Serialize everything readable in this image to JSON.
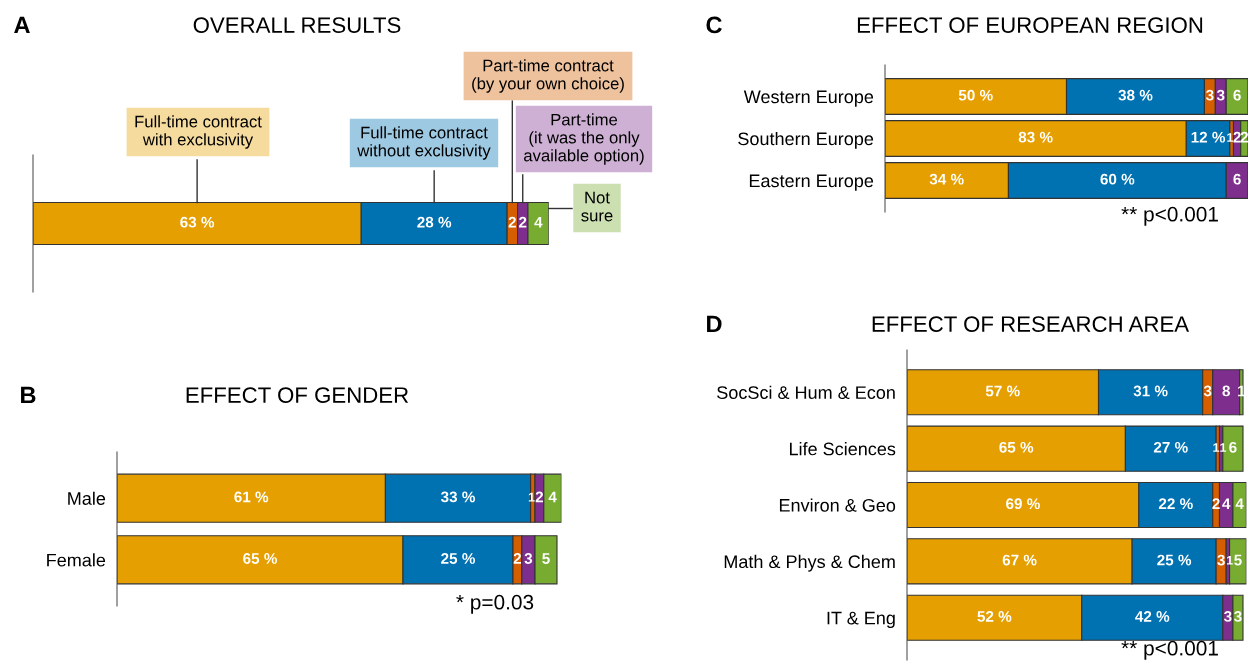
{
  "chart_data": [
    {
      "type": "bar",
      "orientation": "horizontal",
      "stacked": true,
      "title": "OVERALL RESULTS",
      "annotations": [
        "A"
      ],
      "categories": [
        null
      ],
      "series": [
        {
          "name": "Full-time contract\nwith exclusivity",
          "color": "#e69f00",
          "values": [
            63
          ],
          "value_labels": [
            "63 %"
          ]
        },
        {
          "name": "Full-time contract\nwithout exclusivity",
          "color": "#0072b2",
          "values": [
            28
          ],
          "value_labels": [
            "28 %"
          ]
        },
        {
          "name": "Part-time contract\n(by your own choice)",
          "color": "#d55e00",
          "values": [
            2
          ],
          "value_labels": [
            "2"
          ]
        },
        {
          "name": "Part-time\n(it was the only\navailable option)",
          "color": "#7e2f8e",
          "values": [
            2
          ],
          "value_labels": [
            "2"
          ]
        },
        {
          "name": "Not\nsure",
          "color": "#77ac30",
          "values": [
            4
          ],
          "value_labels": [
            "4"
          ]
        }
      ]
    },
    {
      "type": "bar",
      "orientation": "horizontal",
      "stacked": true,
      "title": "EFFECT OF GENDER",
      "annotations": [
        "B",
        "* p=0.03"
      ],
      "categories": [
        "Male",
        "Female"
      ],
      "series": [
        {
          "color": "#e69f00",
          "values": [
            61,
            65
          ],
          "value_labels": [
            "61 %",
            "65 %"
          ]
        },
        {
          "color": "#0072b2",
          "values": [
            33,
            25
          ],
          "value_labels": [
            "33 %",
            "25 %"
          ]
        },
        {
          "color": "#d55e00",
          "values": [
            1,
            2
          ],
          "value_labels": [
            "1",
            "2"
          ]
        },
        {
          "color": "#7e2f8e",
          "values": [
            2,
            3
          ],
          "value_labels": [
            "2",
            "3"
          ]
        },
        {
          "color": "#77ac30",
          "values": [
            4,
            5
          ],
          "value_labels": [
            "4",
            "5"
          ]
        }
      ]
    },
    {
      "type": "bar",
      "orientation": "horizontal",
      "stacked": true,
      "title": "EFFECT OF EUROPEAN REGION",
      "annotations": [
        "C",
        "** p<0.001"
      ],
      "categories": [
        "Western Europe",
        "Southern Europe",
        "Eastern Europe"
      ],
      "series": [
        {
          "color": "#e69f00",
          "values": [
            50,
            83,
            34
          ],
          "value_labels": [
            "50 %",
            "83 %",
            "34 %"
          ]
        },
        {
          "color": "#0072b2",
          "values": [
            38,
            12,
            60
          ],
          "value_labels": [
            "38 %",
            "12 %",
            "60 %"
          ]
        },
        {
          "color": "#d55e00",
          "values": [
            3,
            1,
            null
          ],
          "value_labels": [
            "3",
            "1",
            null
          ]
        },
        {
          "color": "#7e2f8e",
          "values": [
            3,
            2,
            6
          ],
          "value_labels": [
            "3",
            "2",
            "6"
          ]
        },
        {
          "color": "#77ac30",
          "values": [
            6,
            2,
            null
          ],
          "value_labels": [
            "6",
            "2",
            null
          ]
        }
      ]
    },
    {
      "type": "bar",
      "orientation": "horizontal",
      "stacked": true,
      "title": "EFFECT OF RESEARCH AREA",
      "annotations": [
        "D",
        "** p<0.001"
      ],
      "categories": [
        "SocSci & Hum & Econ",
        "Life Sciences",
        "Environ & Geo",
        "Math & Phys & Chem",
        "IT & Eng"
      ],
      "series": [
        {
          "color": "#e69f00",
          "values": [
            57,
            65,
            69,
            67,
            52
          ],
          "value_labels": [
            "57 %",
            "65 %",
            "69 %",
            "67 %",
            "52 %"
          ]
        },
        {
          "color": "#0072b2",
          "values": [
            31,
            27,
            22,
            25,
            42
          ],
          "value_labels": [
            "31 %",
            "27 %",
            "22 %",
            "25 %",
            "42 %"
          ]
        },
        {
          "color": "#d55e00",
          "values": [
            3,
            1,
            2,
            3,
            null
          ],
          "value_labels": [
            "3",
            "1",
            "2",
            "3",
            null
          ]
        },
        {
          "color": "#7e2f8e",
          "values": [
            8,
            1,
            4,
            1,
            3
          ],
          "value_labels": [
            "8",
            "1",
            "4",
            "1",
            "3"
          ]
        },
        {
          "color": "#77ac30",
          "values": [
            1,
            6,
            4,
            5,
            3
          ],
          "value_labels": [
            "1",
            "6",
            "4",
            "5",
            "3"
          ]
        }
      ]
    }
  ]
}
